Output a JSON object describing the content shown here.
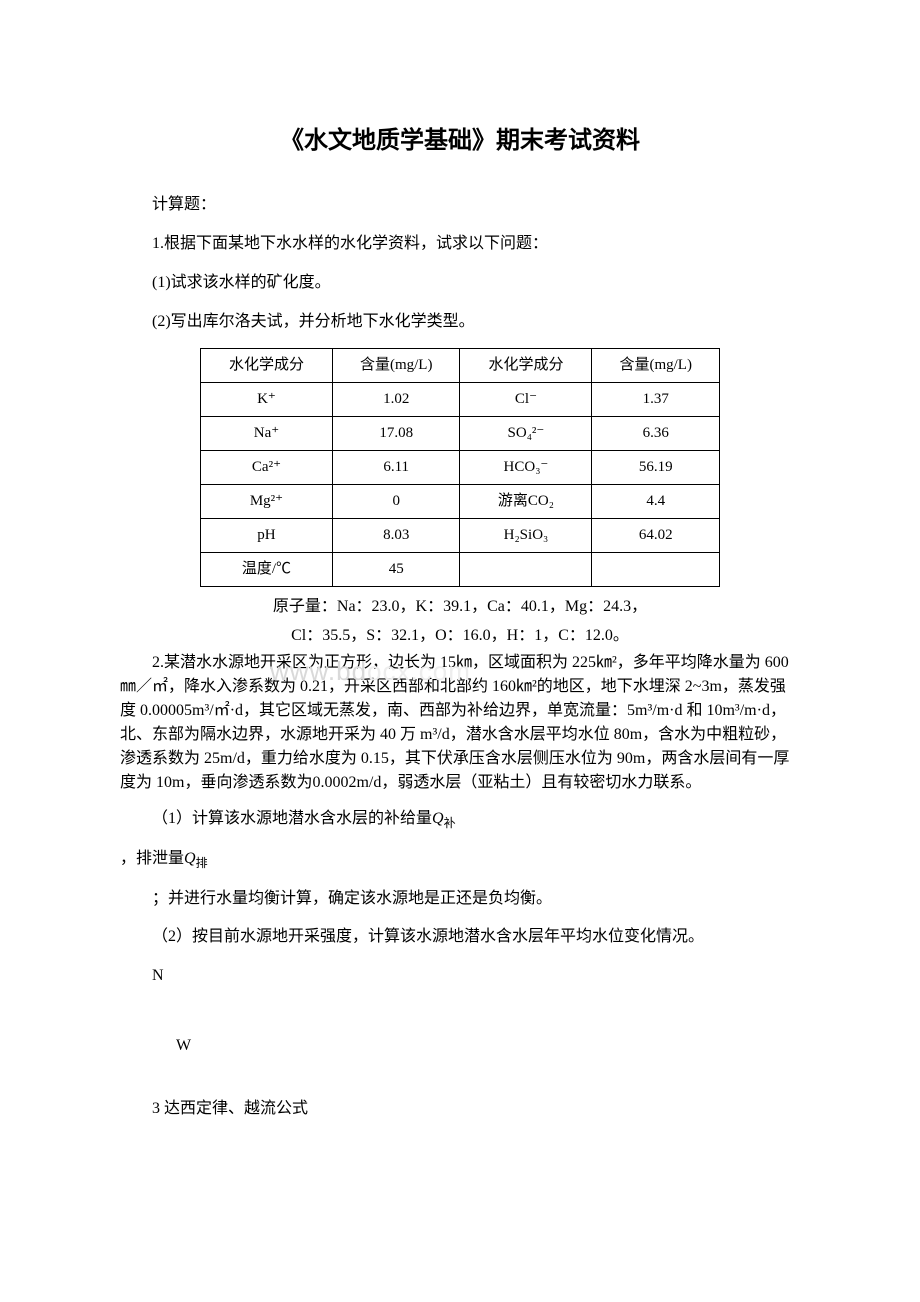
{
  "title": "《水文地质学基础》期末考试资料",
  "intro": {
    "section_label": "计算题：",
    "q1_stem": "1.根据下面某地下水水样的水化学资料，试求以下问题：",
    "q1_a": "(1)试求该水样的矿化度。",
    "q1_b": "(2)写出库尔洛夫试，并分析地下水化学类型。"
  },
  "chem_table": {
    "headers": [
      "水化学成分",
      "含量(mg/L)",
      "水化学成分",
      "含量(mg/L)"
    ],
    "rows": [
      [
        "K⁺",
        "1.02",
        "Cl⁻",
        "1.37"
      ],
      [
        "Na⁺",
        "17.08",
        "SO₄²⁻",
        "6.36"
      ],
      [
        "Ca²⁺",
        "6.11",
        "HCO₃⁻",
        "56.19"
      ],
      [
        "Mg²⁺",
        "0",
        "游离CO₂",
        "4.4"
      ],
      [
        "pH",
        "8.03",
        "H₂SiO₃",
        "64.02"
      ],
      [
        "温度/℃",
        "45",
        "",
        ""
      ]
    ],
    "atomic_line1": "原子量：Na：23.0，K：39.1，Ca：40.1，Mg：24.3，",
    "atomic_line2": "Cl：35.5，S：32.1，O：16.0，H：1，C：12.0。"
  },
  "q2": {
    "stem": "2.某潜水水源地开采区为正方形，边长为 15㎞，区域面积为 225㎞²，多年平均降水量为 600㎜／㎡，降水入渗系数为 0.21，开采区西部和北部约 160㎞²的地区，地下水埋深 2~3m，蒸发强度 0.00005m³/㎡·d，其它区域无蒸发，南、西部为补给边界，单宽流量：5m³/m·d 和 10m³/m·d，北、东部为隔水边界，水源地开采为 40 万 m³/d，潜水含水层平均水位 80m，含水为中粗粒砂，渗透系数为 25m/d，重力给水度为 0.15，其下伏承压含水层侧压水位为 90m，两含水层间有一厚度为 10m，垂向渗透系数为0.0002m/d，弱透水层（亚粘土）且有较密切水力联系。",
    "part1_prefix": "（1）计算该水源地潜水含水层的补给量",
    "q_bu": "Q",
    "q_bu_sub": "补",
    "part1_mid": "，排泄量",
    "q_pai": "Q",
    "q_pai_sub": "排",
    "part1_suffix": "；并进行水量均衡计算，确定该水源地是正还是负均衡。",
    "part2": "（2）按目前水源地开采强度，计算该水源地潜水含水层年平均水位变化情况。",
    "n_label": "N",
    "w_label": "W"
  },
  "q3": "3 达西定律、越流公式",
  "watermark": {
    "text1": "www.bd",
    "text2": "ocx.com"
  }
}
